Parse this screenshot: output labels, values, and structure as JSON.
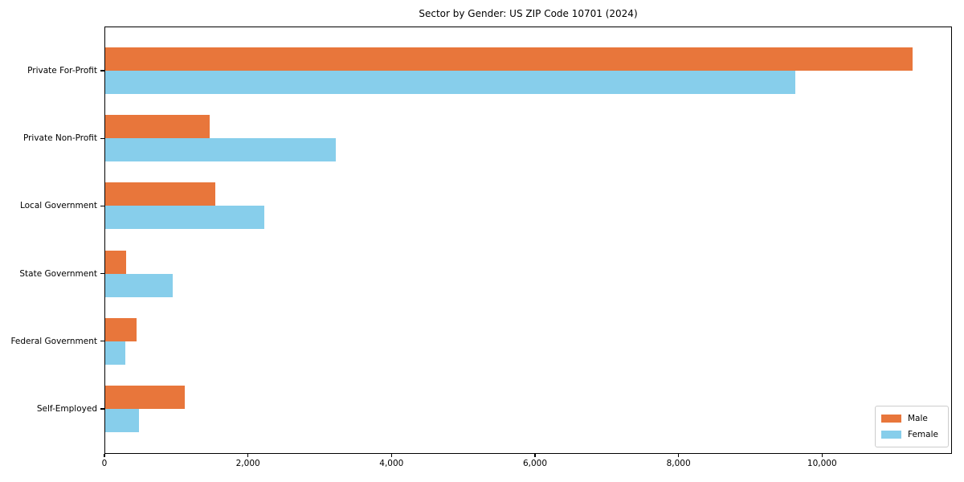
{
  "chart_data": {
    "type": "bar",
    "orientation": "horizontal",
    "title": "Sector by Gender: US ZIP Code 10701 (2024)",
    "categories": [
      "Private For-Profit",
      "Private Non-Profit",
      "Local Government",
      "State Government",
      "Federal Government",
      "Self-Employed"
    ],
    "series": [
      {
        "name": "Male",
        "color": "#E8763B",
        "values": [
          11250,
          1460,
          1530,
          290,
          440,
          1110
        ]
      },
      {
        "name": "Female",
        "color": "#87CEEB",
        "values": [
          9620,
          3210,
          2220,
          940,
          275,
          470
        ]
      }
    ],
    "xlabel": "",
    "ylabel": "",
    "xlim": [
      0,
      11810
    ],
    "xticks": [
      {
        "value": 0,
        "label": "0"
      },
      {
        "value": 2000,
        "label": "2,000"
      },
      {
        "value": 4000,
        "label": "4,000"
      },
      {
        "value": 6000,
        "label": "6,000"
      },
      {
        "value": 8000,
        "label": "8,000"
      },
      {
        "value": 10000,
        "label": "10,000"
      }
    ],
    "grid": false,
    "legend_position": "lower right",
    "axis_color": "#000000",
    "background_color": "#ffffff",
    "legend_border_color": "#cccccc"
  }
}
